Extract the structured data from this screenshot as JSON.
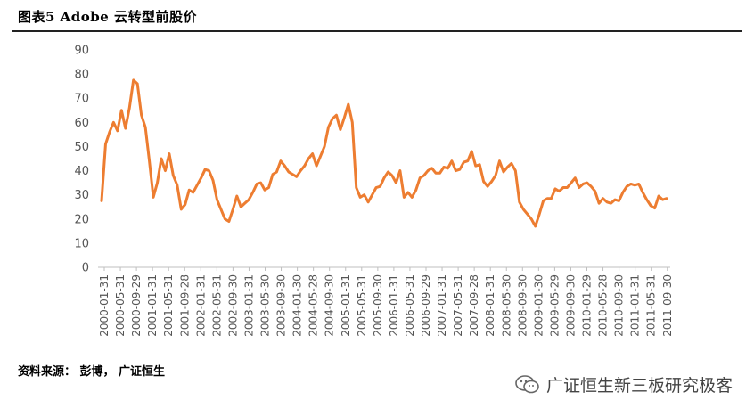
{
  "header": {
    "title": "图表5 Adobe 云转型前股价"
  },
  "footer": {
    "source": "资料来源：  彭博，  广证恒生"
  },
  "watermark": {
    "text": "广证恒生新三板研究极客",
    "icon": "wechat-bubble-icon"
  },
  "colors": {
    "line": "#ED7D31",
    "axis": "#bfbfbf",
    "text": "#595959",
    "rule": "#222222"
  },
  "chart_data": {
    "type": "line",
    "title": "",
    "xlabel": "",
    "ylabel": "",
    "ylim": [
      0,
      90
    ],
    "yticks": [
      0,
      10,
      20,
      30,
      40,
      50,
      60,
      70,
      80,
      90
    ],
    "grid": false,
    "legend": "none",
    "x_tick_labels": [
      "2000-01-31",
      "2000-05-31",
      "2000-09-29",
      "2001-01-31",
      "2001-05-31",
      "2001-09-28",
      "2002-01-31",
      "2002-05-31",
      "2002-09-30",
      "2003-01-31",
      "2003-05-30",
      "2003-09-30",
      "2004-01-30",
      "2004-05-28",
      "2004-09-30",
      "2005-01-31",
      "2005-05-31",
      "2005-09-30",
      "2006-01-31",
      "2006-05-31",
      "2006-09-29",
      "2007-01-31",
      "2007-05-31",
      "2007-09-28",
      "2008-01-31",
      "2008-05-30",
      "2008-09-30",
      "2009-01-30",
      "2009-05-29",
      "2009-09-30",
      "2010-01-29",
      "2010-05-28",
      "2010-09-30",
      "2011-01-31",
      "2011-05-31",
      "2011-09-30"
    ],
    "series": [
      {
        "values": [
          27.5,
          51,
          56,
          60,
          56.5,
          65,
          57.5,
          66,
          77.5,
          76,
          63,
          58,
          44,
          29,
          35,
          45,
          40,
          47,
          38,
          34,
          24,
          26,
          32,
          31,
          34,
          37,
          40.5,
          40,
          36,
          28,
          24,
          20,
          19,
          24,
          29.5,
          25,
          26.5,
          28,
          31,
          34.5,
          35,
          32,
          33,
          38.5,
          39.5,
          44,
          42,
          39.5,
          38.5,
          37.5,
          40,
          42,
          45,
          47,
          42,
          46,
          50,
          58,
          61.5,
          63,
          57,
          62,
          67.5,
          60,
          33,
          29,
          30,
          27,
          30,
          33,
          33.5,
          37,
          39.5,
          38,
          35,
          40,
          29,
          31,
          29,
          32,
          37,
          38,
          40,
          41,
          39,
          39,
          41.5,
          41,
          44,
          40,
          40.5,
          43.5,
          44,
          48,
          42,
          42.5,
          35.5,
          33.5,
          35.5,
          38,
          44,
          39.5,
          41.5,
          43,
          40,
          27,
          24,
          22,
          20,
          17,
          22,
          27.5,
          28.5,
          28.5,
          32.5,
          31.5,
          33,
          33,
          35,
          37,
          33,
          34.5,
          35,
          33.5,
          31.5,
          26.5,
          28.5,
          27,
          26.5,
          28,
          27.5,
          31,
          33.5,
          34.5,
          34,
          34.5,
          31,
          28,
          25.5,
          24.5,
          29.5,
          28,
          28.5
        ]
      }
    ]
  }
}
